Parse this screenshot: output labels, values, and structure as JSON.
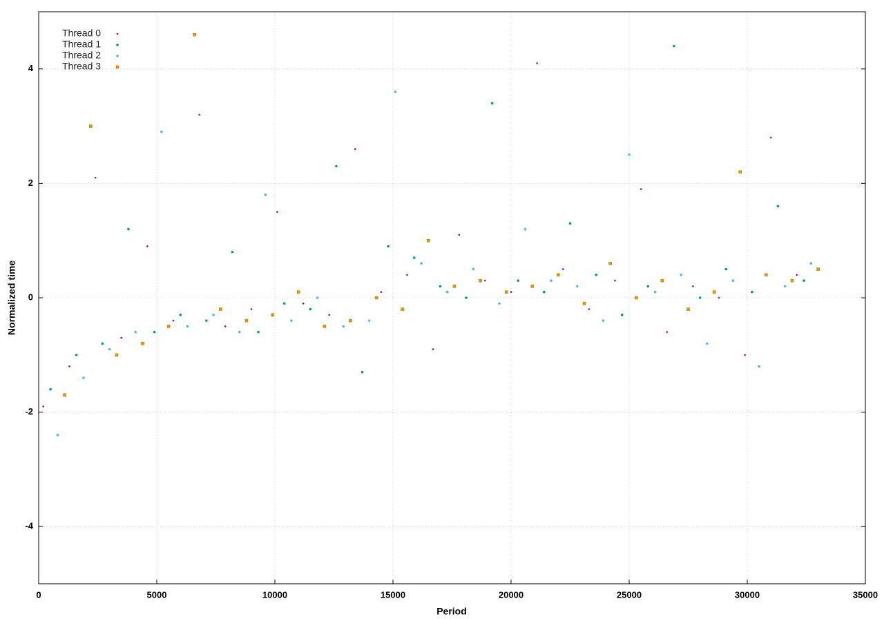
{
  "chart_data": {
    "type": "scatter",
    "xlabel": "Period",
    "ylabel": "Normalized time",
    "xlim": [
      0,
      35000
    ],
    "xticks": [
      0,
      5000,
      10000,
      15000,
      20000,
      25000,
      30000,
      35000
    ],
    "ylim": [
      -5,
      5
    ],
    "yticks": [
      -4,
      -2,
      0,
      2,
      4
    ],
    "grid": true,
    "legend": "top-left",
    "series": [
      {
        "name": "Thread 0",
        "color": "#9400d3",
        "x": [
          200,
          1300,
          2400,
          3500,
          4600,
          5700,
          6800,
          7900,
          9000,
          10100,
          11200,
          12300,
          13400,
          14500,
          15600,
          16700,
          17800,
          18900,
          20000,
          21100,
          22200,
          23300,
          24400,
          25500,
          26600,
          27700,
          28800,
          29900,
          31000,
          32100
        ],
        "values": [
          -1.9,
          -1.2,
          2.1,
          -0.7,
          0.9,
          -0.4,
          3.2,
          -0.5,
          -0.2,
          1.5,
          -0.1,
          -0.3,
          2.6,
          0.1,
          0.4,
          -0.9,
          1.1,
          0.3,
          0.1,
          4.1,
          0.5,
          -0.2,
          0.3,
          1.9,
          -0.6,
          0.2,
          0.0,
          -1.0,
          2.8,
          0.4
        ]
      },
      {
        "name": "Thread 1",
        "color": "#009e73",
        "x": [
          500,
          1600,
          2700,
          3800,
          4900,
          6000,
          7100,
          8200,
          9300,
          10400,
          11500,
          12600,
          13700,
          14800,
          15900,
          17000,
          18100,
          19200,
          20300,
          21400,
          22500,
          23600,
          24700,
          25800,
          26900,
          28000,
          29100,
          30200,
          31300,
          32400
        ],
        "values": [
          -1.6,
          -1.0,
          -0.8,
          1.2,
          -0.6,
          -0.3,
          -0.4,
          0.8,
          -0.6,
          -0.1,
          -0.2,
          2.3,
          -1.3,
          0.9,
          0.7,
          0.2,
          0.0,
          3.4,
          0.3,
          0.1,
          1.3,
          0.4,
          -0.3,
          0.2,
          4.4,
          0.0,
          0.5,
          0.1,
          1.6,
          0.3
        ]
      },
      {
        "name": "Thread 2",
        "color": "#56b4e9",
        "x": [
          800,
          1900,
          3000,
          4100,
          5200,
          6300,
          7400,
          8500,
          9600,
          10700,
          11800,
          12900,
          14000,
          15100,
          16200,
          17300,
          18400,
          19500,
          20600,
          21700,
          22800,
          23900,
          25000,
          26100,
          27200,
          28300,
          29400,
          30500,
          31600,
          32700
        ],
        "values": [
          -2.4,
          -1.4,
          -0.9,
          -0.6,
          2.9,
          -0.5,
          -0.3,
          -0.6,
          1.8,
          -0.4,
          0.0,
          -0.5,
          -0.4,
          3.6,
          0.6,
          0.1,
          0.5,
          -0.1,
          1.2,
          0.3,
          0.2,
          -0.4,
          2.5,
          0.1,
          0.4,
          -0.8,
          0.3,
          -1.2,
          0.2,
          0.6
        ]
      },
      {
        "name": "Thread 3",
        "color": "#e69f00",
        "x": [
          1100,
          2200,
          3300,
          4400,
          5500,
          6600,
          7700,
          8800,
          9900,
          11000,
          12100,
          13200,
          14300,
          15400,
          16500,
          17600,
          18700,
          19800,
          20900,
          22000,
          23100,
          24200,
          25300,
          26400,
          27500,
          28600,
          29700,
          30800,
          31900,
          33000
        ],
        "values": [
          -1.7,
          3.0,
          -1.0,
          -0.8,
          -0.5,
          4.6,
          -0.2,
          -0.4,
          -0.3,
          0.1,
          -0.5,
          -0.4,
          0.0,
          -0.2,
          1.0,
          0.2,
          0.3,
          0.1,
          0.2,
          0.4,
          -0.1,
          0.6,
          0.0,
          0.3,
          -0.2,
          0.1,
          2.2,
          0.4,
          0.3,
          0.5
        ]
      }
    ]
  }
}
